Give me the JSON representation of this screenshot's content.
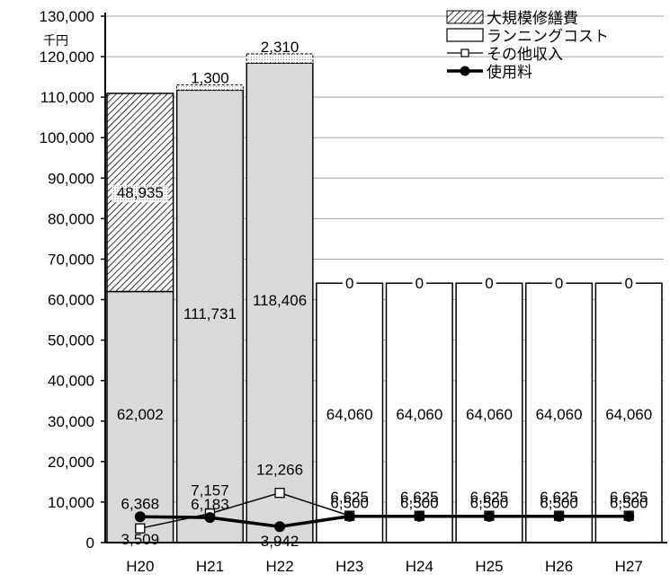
{
  "chart_data": {
    "type": "bar",
    "stacked": true,
    "unit_label": "千円",
    "categories": [
      "H20",
      "H21",
      "H22",
      "H23",
      "H24",
      "H25",
      "H26",
      "H27"
    ],
    "y_ticks": [
      "0",
      "10,000",
      "20,000",
      "30,000",
      "40,000",
      "50,000",
      "60,000",
      "70,000",
      "80,000",
      "90,000",
      "100,000",
      "110,000",
      "120,000",
      "130,000"
    ],
    "ylim": [
      0,
      130000
    ],
    "grid": true,
    "legend_position": "top-right",
    "series": [
      {
        "name": "ランニングコスト",
        "kind": "bar",
        "values": [
          62002,
          111731,
          118406,
          64060,
          64060,
          64060,
          64060,
          64060
        ],
        "labels": [
          "62,002",
          "111,731",
          "118,406",
          "64,060",
          "64,060",
          "64,060",
          "64,060",
          "64,060"
        ]
      },
      {
        "name": "大規模修繕費",
        "kind": "bar",
        "values": [
          48935,
          1300,
          2310,
          0,
          0,
          0,
          0,
          0
        ],
        "labels": [
          "48,935",
          "1,300",
          "2,310",
          "0",
          "0",
          "0",
          "0",
          "0"
        ]
      },
      {
        "name": "その他収入",
        "kind": "line",
        "values": [
          3509,
          7157,
          12266,
          6625,
          6625,
          6625,
          6625,
          6625
        ],
        "labels": [
          "3,509",
          "7,157",
          "12,266",
          "6,625",
          "6,625",
          "6,625",
          "6,625",
          "6,625"
        ]
      },
      {
        "name": "使用料",
        "kind": "line",
        "values": [
          6368,
          6183,
          3942,
          6500,
          6500,
          6500,
          6500,
          6500
        ],
        "labels": [
          "6,368",
          "6,183",
          "3,942",
          "6,500",
          "6,500",
          "6,500",
          "6,500",
          "6,500"
        ]
      }
    ]
  },
  "colors": {
    "bar_fill_shaded": "#d9d9d9",
    "bar_fill_white": "#ffffff",
    "bar_stroke": "#000000",
    "gridline": "#a6a6a6",
    "line": "#000000"
  }
}
